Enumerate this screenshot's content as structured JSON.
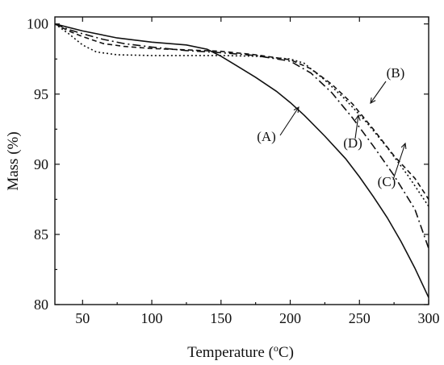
{
  "chart_data": {
    "type": "line",
    "xlabel": "Temperature (",
    "xlabel_sup": "o",
    "xlabel_unit": "C)",
    "ylabel": "Mass (%)",
    "xlim": [
      30,
      300
    ],
    "ylim": [
      80,
      100.5
    ],
    "xticks": [
      50,
      100,
      150,
      200,
      250,
      300
    ],
    "yticks": [
      80,
      85,
      90,
      95,
      100
    ],
    "grid": false,
    "series": [
      {
        "name": "(A)",
        "dash": "",
        "label_at": [
          330,
          175
        ],
        "arrow_from": [
          347,
          168
        ],
        "arrow_to": [
          370,
          133
        ],
        "points": [
          [
            30,
            100
          ],
          [
            50,
            99.5
          ],
          [
            75,
            99.0
          ],
          [
            100,
            98.7
          ],
          [
            125,
            98.5
          ],
          [
            140,
            98.2
          ],
          [
            150,
            97.7
          ],
          [
            160,
            97.1
          ],
          [
            175,
            96.2
          ],
          [
            190,
            95.2
          ],
          [
            200,
            94.4
          ],
          [
            210,
            93.5
          ],
          [
            225,
            92.0
          ],
          [
            240,
            90.4
          ],
          [
            250,
            89.1
          ],
          [
            260,
            87.7
          ],
          [
            270,
            86.2
          ],
          [
            280,
            84.5
          ],
          [
            290,
            82.6
          ],
          [
            300,
            80.5
          ]
        ]
      },
      {
        "name": "(B)",
        "dash": "6,4",
        "label_at": [
          490,
          96
        ],
        "arrow_from": [
          478,
          101
        ],
        "arrow_to": [
          459,
          128
        ],
        "points": [
          [
            30,
            100
          ],
          [
            40,
            99.5
          ],
          [
            50,
            99.1
          ],
          [
            65,
            98.6
          ],
          [
            80,
            98.4
          ],
          [
            100,
            98.25
          ],
          [
            125,
            98.15
          ],
          [
            150,
            98.05
          ],
          [
            175,
            97.8
          ],
          [
            200,
            97.45
          ],
          [
            215,
            96.8
          ],
          [
            230,
            95.7
          ],
          [
            245,
            94.3
          ],
          [
            260,
            92.5
          ],
          [
            275,
            90.6
          ],
          [
            290,
            89.0
          ],
          [
            300,
            87.5
          ]
        ]
      },
      {
        "name": "(C)",
        "dash": "10,4,2,4",
        "label_at": [
          479,
          231
        ],
        "arrow_from": [
          487,
          223
        ],
        "arrow_to": [
          502,
          178
        ],
        "points": [
          [
            30,
            100
          ],
          [
            40,
            99.6
          ],
          [
            50,
            99.3
          ],
          [
            65,
            98.9
          ],
          [
            80,
            98.6
          ],
          [
            100,
            98.35
          ],
          [
            125,
            98.1
          ],
          [
            150,
            97.95
          ],
          [
            175,
            97.75
          ],
          [
            200,
            97.35
          ],
          [
            215,
            96.5
          ],
          [
            230,
            95.1
          ],
          [
            245,
            93.3
          ],
          [
            260,
            91.3
          ],
          [
            275,
            89.2
          ],
          [
            290,
            86.8
          ],
          [
            300,
            84.0
          ]
        ]
      },
      {
        "name": "(D)",
        "dash": "2,3",
        "label_at": [
          437,
          183
        ],
        "arrow_from": [
          440,
          172
        ],
        "arrow_to": [
          444,
          143
        ],
        "points": [
          [
            30,
            100
          ],
          [
            40,
            99.3
          ],
          [
            50,
            98.5
          ],
          [
            60,
            98.0
          ],
          [
            75,
            97.8
          ],
          [
            100,
            97.75
          ],
          [
            125,
            97.75
          ],
          [
            150,
            97.75
          ],
          [
            175,
            97.7
          ],
          [
            200,
            97.5
          ],
          [
            210,
            97.2
          ],
          [
            225,
            96.0
          ],
          [
            240,
            94.6
          ],
          [
            255,
            93.0
          ],
          [
            270,
            91.2
          ],
          [
            285,
            89.2
          ],
          [
            300,
            87.0
          ]
        ]
      }
    ]
  }
}
